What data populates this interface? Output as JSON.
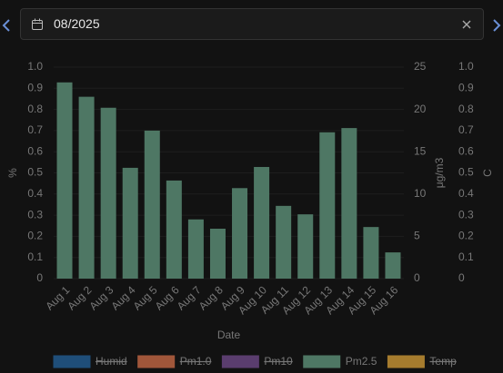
{
  "date_picker": {
    "value": "08/2025"
  },
  "chart_data": {
    "type": "bar",
    "x_label": "Date",
    "y_label": "%",
    "y2_label": "μg/m3",
    "y3_label": "C",
    "categories": [
      "Aug 1",
      "Aug 2",
      "Aug 3",
      "Aug 4",
      "Aug 5",
      "Aug 6",
      "Aug 7",
      "Aug 8",
      "Aug 9",
      "Aug 10",
      "Aug 11",
      "Aug 12",
      "Aug 13",
      "Aug 14",
      "Aug 15",
      "Aug 16"
    ],
    "series": [
      {
        "name": "Humid",
        "color": "#1f4e79",
        "hidden": true
      },
      {
        "name": "Pm1.0",
        "color": "#a0563a",
        "hidden": true
      },
      {
        "name": "Pm10",
        "color": "#5a3d6e",
        "hidden": true
      },
      {
        "name": "Pm2.5",
        "color": "#4e7764",
        "axis": "y2",
        "values": [
          23.2,
          21.5,
          20.2,
          13.1,
          17.5,
          11.6,
          7.0,
          5.9,
          10.7,
          13.2,
          8.6,
          7.6,
          17.3,
          17.8,
          6.1,
          3.1
        ]
      },
      {
        "name": "Temp",
        "color": "#a67c2e",
        "hidden": true
      }
    ],
    "ylim": [
      0,
      1
    ],
    "yticks": [
      0,
      0.1,
      0.2,
      0.3,
      0.4,
      0.5,
      0.6,
      0.7,
      0.8,
      0.9,
      {
        "value": 1,
        "label": "1.0"
      }
    ],
    "y2lim": [
      0,
      25
    ],
    "y2ticks": [
      0,
      5,
      10,
      15,
      20,
      25
    ],
    "y3lim": [
      0,
      1
    ],
    "y3ticks": [
      0,
      0.1,
      0.2,
      0.3,
      0.4,
      0.5,
      0.6,
      0.7,
      0.8,
      0.9,
      {
        "value": 1,
        "label": "1.0"
      }
    ],
    "grid": true
  }
}
